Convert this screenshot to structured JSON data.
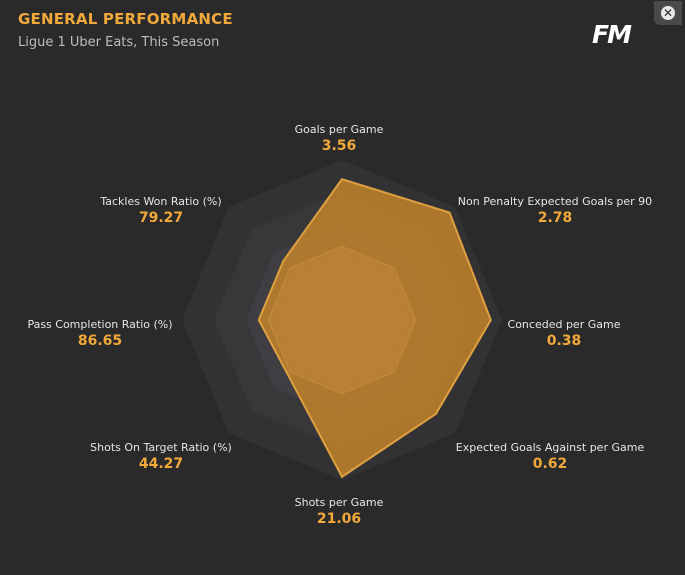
{
  "header": {
    "title": "GENERAL PERFORMANCE",
    "subtitle": "Ligue 1 Uber Eats, This Season",
    "logo_text": "FM",
    "close_icon": "close-icon"
  },
  "colors": {
    "accent": "#f2a93b",
    "background": "#2a2a2b",
    "fill": "#c7862a"
  },
  "chart_data": {
    "type": "radar",
    "axes": [
      {
        "label": "Goals per Game",
        "value": "3.56",
        "level": 0.88
      },
      {
        "label": "Non Penalty Expected Goals per 90",
        "value": "2.78",
        "level": 0.95
      },
      {
        "label": "Conceded per Game",
        "value": "0.38",
        "level": 0.93
      },
      {
        "label": "Expected Goals Against per Game",
        "value": "0.62",
        "level": 0.83
      },
      {
        "label": "Shots per Game",
        "value": "21.06",
        "level": 0.98
      },
      {
        "label": "Shots On Target Ratio (%)",
        "value": "44.27",
        "level": 0.48
      },
      {
        "label": "Pass Completion Ratio (%)",
        "value": "86.65",
        "level": 0.52
      },
      {
        "label": "Tackles Won Ratio (%)",
        "value": "79.27",
        "level": 0.52
      }
    ],
    "average_level": 0.46
  }
}
